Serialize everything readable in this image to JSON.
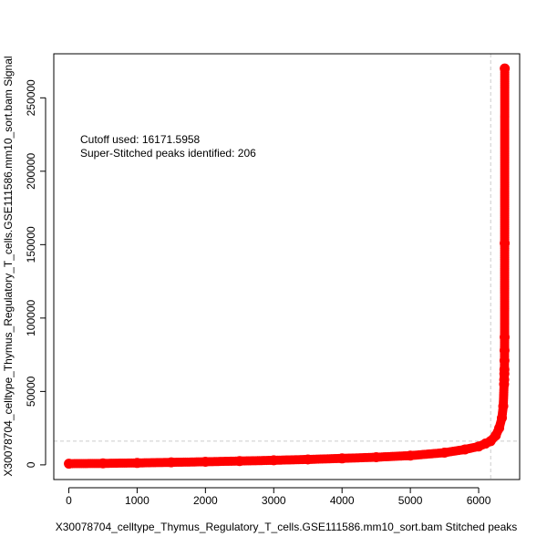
{
  "chart_data": {
    "type": "scatter",
    "title": "",
    "xlabel": "X30078704_celltype_Thymus_Regulatory_T_cells.GSE111586.mm10_sort.bam  Stitched peaks",
    "ylabel": "X30078704_celltype_Thymus_Regulatory_T_cells.GSE111586.mm10_sort.bam  Signal",
    "xlim": [
      -220,
      6600
    ],
    "ylim": [
      -10000,
      280000
    ],
    "x_ticks": [
      0,
      1000,
      2000,
      3000,
      4000,
      5000,
      6000
    ],
    "x_tick_labels": [
      "0",
      "1000",
      "2000",
      "3000",
      "4000",
      "5000",
      "6000"
    ],
    "y_ticks": [
      0,
      50000,
      100000,
      150000,
      200000,
      250000
    ],
    "y_tick_labels": [
      "0",
      "50000",
      "100000",
      "150000",
      "200000",
      "250000"
    ],
    "annotations": [
      "Cutoff used:  16171.5958",
      "Super-Stitched peaks identified:  206"
    ],
    "cutoff_signal": 16171.5958,
    "cutoff_rank": 6176,
    "total_peaks": 6382,
    "series": [
      {
        "color": "#ff0000",
        "x": [
          1,
          500,
          1000,
          1500,
          2000,
          2500,
          3000,
          3500,
          4000,
          4500,
          5000,
          5500,
          5800,
          6000,
          6100,
          6176,
          6250,
          6300,
          6340,
          6360,
          6372,
          6374,
          6376,
          6377,
          6378,
          6379,
          6380,
          6381,
          6382
        ],
        "y": [
          800,
          1000,
          1300,
          1700,
          2100,
          2600,
          3100,
          3700,
          4400,
          5200,
          6300,
          8300,
          10500,
          12500,
          14500,
          16200,
          20000,
          25000,
          32000,
          40000,
          55000,
          58000,
          62000,
          65000,
          71000,
          78000,
          87000,
          151000,
          270000
        ]
      }
    ],
    "reference_lines": [
      {
        "orientation": "horizontal",
        "value": 16171.5958,
        "color": "#cccccc",
        "style": "dashed"
      },
      {
        "orientation": "vertical",
        "value": 6176,
        "color": "#cccccc",
        "style": "dashed"
      }
    ],
    "grid": false,
    "legend": "none"
  }
}
